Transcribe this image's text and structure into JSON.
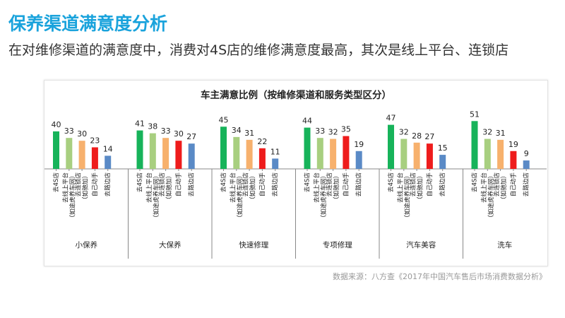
{
  "page": {
    "title": "保养渠道满意度分析",
    "subtitle": "在对维修渠道的满意度中，消费对4S店的维修满意度最高，其次是线上平台、连锁店",
    "source": "数据来源：八方查《2017年中国汽车售后市场消费数据分析》"
  },
  "chart_data": {
    "type": "bar",
    "title": "车主满意比例（按维修渠道和服务类型区分）",
    "groups": [
      "小保养",
      "大保养",
      "快速修理",
      "专项修理",
      "汽车美容",
      "洗车"
    ],
    "series": [
      {
        "name": "去4S店",
        "color": "#17b35a",
        "values": [
          40,
          41,
          45,
          44,
          47,
          51
        ]
      },
      {
        "name": "去线上平台（如途虎养车网）",
        "color": "#a8cf80",
        "values": [
          33,
          38,
          34,
          33,
          32,
          32
        ]
      },
      {
        "name": "去连锁店（如驰加）",
        "color": "#f7b16d",
        "values": [
          30,
          33,
          31,
          32,
          28,
          31
        ]
      },
      {
        "name": "自己动手",
        "color": "#ee1c1c",
        "values": [
          23,
          30,
          22,
          35,
          27,
          19
        ]
      },
      {
        "name": "去路边店",
        "color": "#5a8ac6",
        "values": [
          14,
          27,
          11,
          19,
          15,
          9
        ]
      }
    ],
    "category_labels": [
      "去4S店",
      "去线上平台（如途虎养车网）",
      "去连锁店（如驰加）",
      "自己动手",
      "去路边店"
    ],
    "ylim": [
      0,
      55
    ],
    "grid": false,
    "legend": "none"
  }
}
